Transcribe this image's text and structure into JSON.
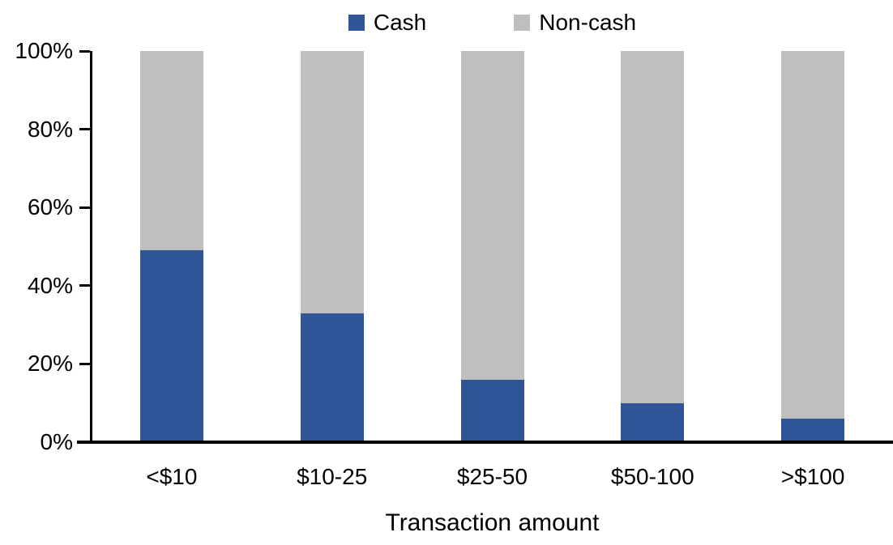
{
  "chart_data": {
    "type": "bar",
    "stacked": true,
    "percent_stacked": true,
    "title": "",
    "xlabel": "Transaction amount",
    "ylabel": "",
    "categories": [
      "<$10",
      "$10-25",
      "$25-50",
      "$50-100",
      ">$100"
    ],
    "series": [
      {
        "name": "Cash",
        "color": "#2F5597",
        "values": [
          49,
          33,
          16,
          10,
          6
        ]
      },
      {
        "name": "Non-cash",
        "color": "#BFBFBF",
        "values": [
          51,
          67,
          84,
          90,
          94
        ]
      }
    ],
    "y_ticks": [
      {
        "label": "0%",
        "value": 0
      },
      {
        "label": "20%",
        "value": 20
      },
      {
        "label": "40%",
        "value": 40
      },
      {
        "label": "60%",
        "value": 60
      },
      {
        "label": "80%",
        "value": 80
      },
      {
        "label": "100%",
        "value": 100
      }
    ],
    "ylim": [
      0,
      100
    ],
    "legend_position": "top",
    "grid": false,
    "axis_color": "#000000",
    "background_color": "#FFFFFF"
  }
}
